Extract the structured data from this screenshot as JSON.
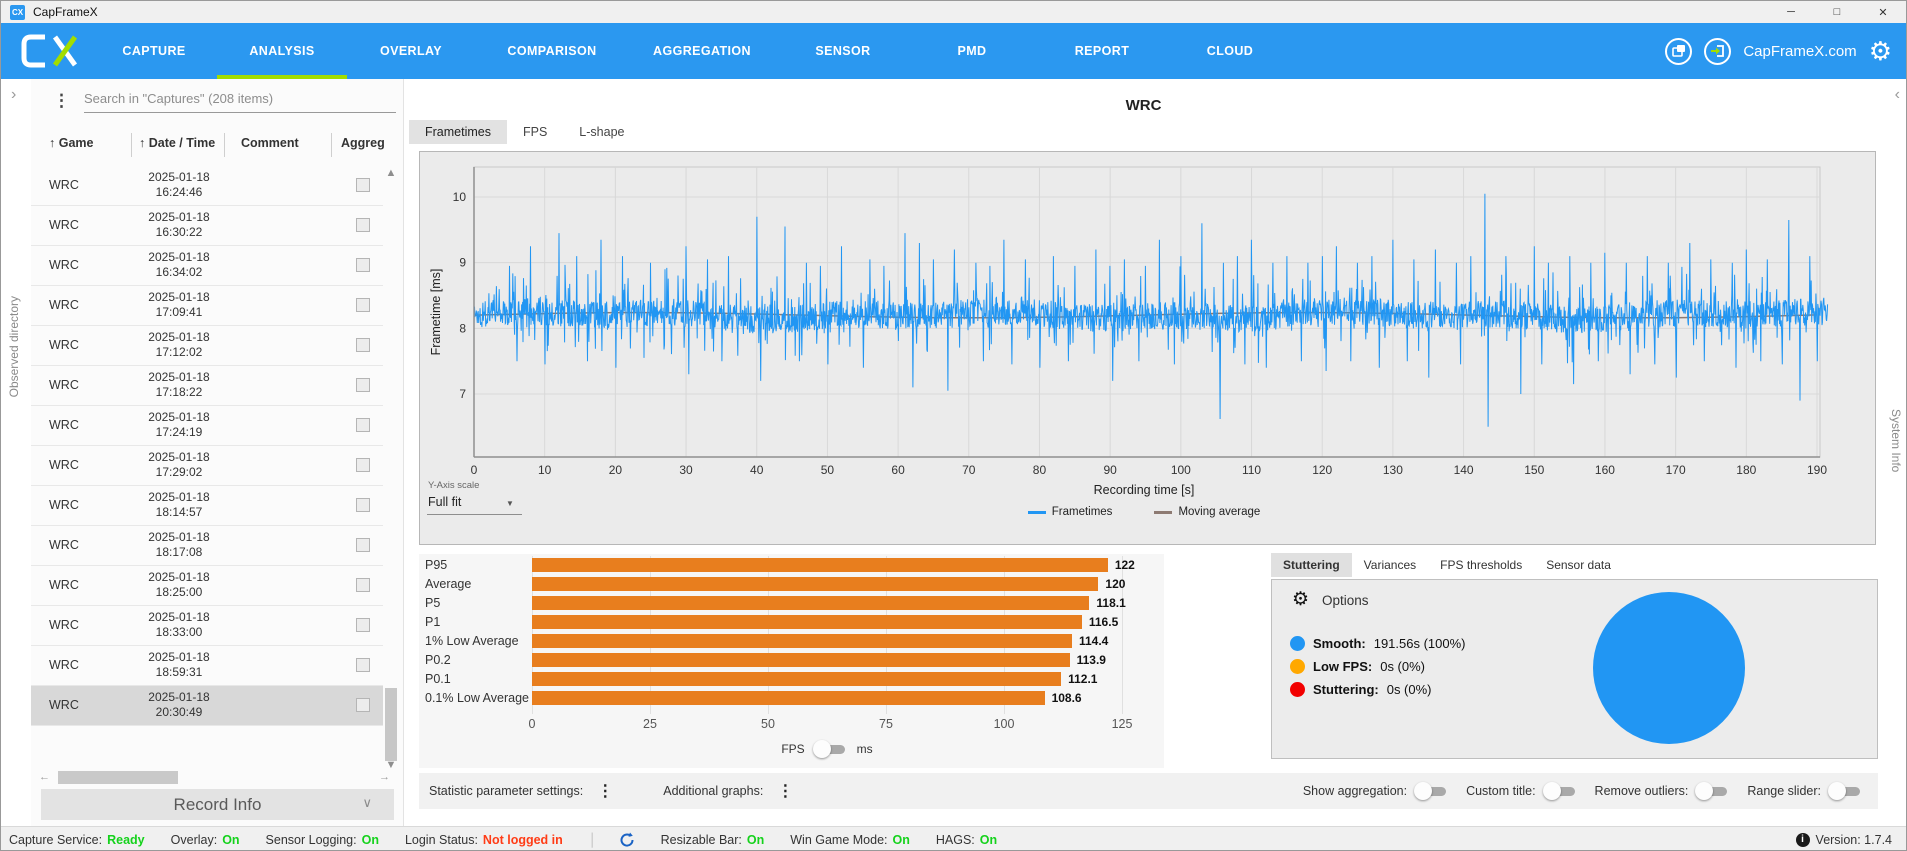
{
  "window": {
    "title": "CapFrameX"
  },
  "nav": {
    "items": [
      {
        "label": "CAPTURE"
      },
      {
        "label": "ANALYSIS"
      },
      {
        "label": "OVERLAY"
      },
      {
        "label": "COMPARISON"
      },
      {
        "label": "AGGREGATION"
      },
      {
        "label": "SENSOR"
      },
      {
        "label": "PMD"
      },
      {
        "label": "REPORT"
      },
      {
        "label": "CLOUD"
      }
    ],
    "active_index": 1,
    "site_label": "CapFrameX.com",
    "accent_underline": "#a2dd00"
  },
  "left_strip": {
    "label": "Observed directory"
  },
  "right_strip": {
    "label": "System Info"
  },
  "sidebar": {
    "search_placeholder": "Search in \"Captures\" (208 items)",
    "columns": [
      "Game",
      "Date / Time",
      "Comment",
      "Aggreg"
    ],
    "rows": [
      {
        "game": "WRC",
        "date": "2025-01-18",
        "time": "16:24:46"
      },
      {
        "game": "WRC",
        "date": "2025-01-18",
        "time": "16:30:22"
      },
      {
        "game": "WRC",
        "date": "2025-01-18",
        "time": "16:34:02"
      },
      {
        "game": "WRC",
        "date": "2025-01-18",
        "time": "17:09:41"
      },
      {
        "game": "WRC",
        "date": "2025-01-18",
        "time": "17:12:02"
      },
      {
        "game": "WRC",
        "date": "2025-01-18",
        "time": "17:18:22"
      },
      {
        "game": "WRC",
        "date": "2025-01-18",
        "time": "17:24:19"
      },
      {
        "game": "WRC",
        "date": "2025-01-18",
        "time": "17:29:02"
      },
      {
        "game": "WRC",
        "date": "2025-01-18",
        "time": "18:14:57"
      },
      {
        "game": "WRC",
        "date": "2025-01-18",
        "time": "18:17:08"
      },
      {
        "game": "WRC",
        "date": "2025-01-18",
        "time": "18:25:00"
      },
      {
        "game": "WRC",
        "date": "2025-01-18",
        "time": "18:33:00"
      },
      {
        "game": "WRC",
        "date": "2025-01-18",
        "time": "18:59:31"
      },
      {
        "game": "WRC",
        "date": "2025-01-18",
        "time": "20:30:49"
      }
    ],
    "selected_row_index": 13,
    "record_info_label": "Record Info"
  },
  "main": {
    "title": "WRC",
    "tabs": [
      "Frametimes",
      "FPS",
      "L-shape"
    ],
    "active_tab": 0,
    "yaxis_scale_label": "Y-Axis scale",
    "yaxis_scale_value": "Full fit",
    "xlabel": "Recording time [s]",
    "ylabel": "Frametime [ms]",
    "legend": [
      {
        "label": "Frametimes",
        "color": "#2196f3"
      },
      {
        "label": "Moving average",
        "color": "#8d7a72"
      }
    ]
  },
  "settings_row": {
    "left_items": [
      {
        "label": "Statistic parameter settings:"
      },
      {
        "label": "Additional graphs:"
      }
    ],
    "toggles": [
      {
        "label": "Show aggregation:",
        "on": false
      },
      {
        "label": "Custom title:",
        "on": false
      },
      {
        "label": "Remove outliers:",
        "on": false
      },
      {
        "label": "Range slider:",
        "on": false
      }
    ]
  },
  "right_panel": {
    "tabs": [
      "Stuttering",
      "Variances",
      "FPS thresholds",
      "Sensor data"
    ],
    "active_tab": 0,
    "options_label": "Options",
    "legend": [
      {
        "label": "Smooth:",
        "value": "191.56s (100%)",
        "color": "#2196f3"
      },
      {
        "label": "Low FPS:",
        "value": "0s (0%)",
        "color": "#ffa800"
      },
      {
        "label": "Stuttering:",
        "value": "0s (0%)",
        "color": "#f20000"
      }
    ]
  },
  "statusbar": {
    "items": [
      {
        "label": "Capture Service:",
        "value": "Ready",
        "color": "#15d21c"
      },
      {
        "label": "Overlay:",
        "value": "On",
        "color": "#15d21c"
      },
      {
        "label": "Sensor Logging:",
        "value": "On",
        "color": "#15d21c"
      },
      {
        "label": "Login Status:",
        "value": "Not logged in",
        "color": "#ff3c16"
      },
      {
        "separator": true
      },
      {
        "icon": "rebar-status-icon"
      },
      {
        "label": "Resizable Bar:",
        "value": "On",
        "color": "#15d21c"
      },
      {
        "label": "Win Game Mode:",
        "value": "On",
        "color": "#15d21c"
      },
      {
        "label": "HAGS:",
        "value": "On",
        "color": "#15d21c"
      }
    ],
    "version": "Version: 1.7.4"
  },
  "chart_data": [
    {
      "type": "line",
      "title": "WRC",
      "xlabel": "Recording time [s]",
      "ylabel": "Frametime [ms]",
      "x_ticks": [
        0,
        10,
        20,
        30,
        40,
        50,
        60,
        70,
        80,
        90,
        100,
        110,
        120,
        130,
        140,
        150,
        160,
        170,
        180,
        190
      ],
      "y_ticks": [
        7,
        8,
        9,
        10
      ],
      "x_range": [
        0,
        191.56
      ],
      "y_range": [
        6.04,
        10.46
      ],
      "legend": [
        "Frametimes",
        "Moving average"
      ],
      "series_color": "#2196f3",
      "moving_avg_color": "#8d7a72",
      "baseline_ms": 8.2,
      "noise_band_ms": 0.42,
      "points_count": 2900,
      "spikes_up": [
        [
          5,
          8.95
        ],
        [
          8,
          9.25
        ],
        [
          12,
          9.45
        ],
        [
          14.5,
          9.1
        ],
        [
          18,
          9.35
        ],
        [
          21,
          9.1
        ],
        [
          25,
          9.0
        ],
        [
          27,
          8.9
        ],
        [
          30,
          9.25
        ],
        [
          33,
          9.05
        ],
        [
          36,
          9.1
        ],
        [
          40,
          9.7
        ],
        [
          44,
          9.55
        ],
        [
          47,
          9.0
        ],
        [
          49,
          8.95
        ],
        [
          52,
          9.25
        ],
        [
          56,
          9.05
        ],
        [
          58,
          8.95
        ],
        [
          61,
          9.45
        ],
        [
          63,
          9.3
        ],
        [
          65,
          9.05
        ],
        [
          68,
          9.2
        ],
        [
          71,
          9.0
        ],
        [
          73,
          8.95
        ],
        [
          75,
          9.35
        ],
        [
          78,
          9.05
        ],
        [
          82,
          9.1
        ],
        [
          85,
          8.95
        ],
        [
          88,
          9.2
        ],
        [
          90,
          8.95
        ],
        [
          92,
          9.05
        ],
        [
          95,
          8.95
        ],
        [
          97,
          9.35
        ],
        [
          100,
          9.1
        ],
        [
          103,
          9.6
        ],
        [
          106,
          9.0
        ],
        [
          108,
          9.1
        ],
        [
          110,
          9.35
        ],
        [
          113,
          9.0
        ],
        [
          115,
          9.1
        ],
        [
          118,
          9.0
        ],
        [
          120,
          9.1
        ],
        [
          122,
          9.25
        ],
        [
          125,
          9.0
        ],
        [
          127,
          9.1
        ],
        [
          130,
          9.35
        ],
        [
          133,
          9.05
        ],
        [
          136,
          9.2
        ],
        [
          139,
          9.0
        ],
        [
          141,
          9.1
        ],
        [
          143,
          10.05
        ],
        [
          146,
          9.1
        ],
        [
          150,
          9.25
        ],
        [
          152,
          9.0
        ],
        [
          155,
          9.1
        ],
        [
          158,
          9.0
        ],
        [
          160,
          9.15
        ],
        [
          163,
          9.0
        ],
        [
          166,
          9.1
        ],
        [
          169,
          9.0
        ],
        [
          172,
          9.3
        ],
        [
          175,
          9.05
        ],
        [
          178,
          9.0
        ],
        [
          180,
          9.2
        ],
        [
          183,
          9.05
        ],
        [
          186,
          9.65
        ],
        [
          189,
          9.1
        ]
      ],
      "spikes_down": [
        [
          6,
          7.5
        ],
        [
          10,
          7.45
        ],
        [
          16,
          7.5
        ],
        [
          20,
          7.4
        ],
        [
          24,
          7.55
        ],
        [
          30.3,
          7.3
        ],
        [
          35,
          7.5
        ],
        [
          40.5,
          7.2
        ],
        [
          46,
          7.5
        ],
        [
          50,
          7.45
        ],
        [
          55,
          7.4
        ],
        [
          62,
          7.1
        ],
        [
          67,
          7.05
        ],
        [
          72,
          7.5
        ],
        [
          76,
          7.45
        ],
        [
          80,
          7.4
        ],
        [
          84,
          7.5
        ],
        [
          90.3,
          7.2
        ],
        [
          94,
          7.5
        ],
        [
          99,
          7.45
        ],
        [
          105.5,
          6.62
        ],
        [
          109,
          7.45
        ],
        [
          112,
          7.4
        ],
        [
          117,
          7.5
        ],
        [
          120.5,
          7.35
        ],
        [
          124,
          7.5
        ],
        [
          128,
          7.4
        ],
        [
          132,
          7.5
        ],
        [
          135,
          7.25
        ],
        [
          139.5,
          7.45
        ],
        [
          143.4,
          6.5
        ],
        [
          148,
          7.0
        ],
        [
          151,
          7.45
        ],
        [
          155.5,
          7.15
        ],
        [
          159,
          7.5
        ],
        [
          163.5,
          7.3
        ],
        [
          167,
          7.45
        ],
        [
          170,
          7.25
        ],
        [
          174,
          7.5
        ],
        [
          178.5,
          7.4
        ],
        [
          182,
          7.5
        ],
        [
          185,
          7.45
        ],
        [
          187.5,
          6.9
        ],
        [
          190,
          7.5
        ]
      ]
    },
    {
      "type": "bar",
      "orientation": "horizontal",
      "categories": [
        "P95",
        "Average",
        "P5",
        "P1",
        "1% Low Average",
        "P0.2",
        "P0.1",
        "0.1% Low Average"
      ],
      "values": [
        122,
        120,
        118.1,
        116.5,
        114.4,
        113.9,
        112.1,
        108.6
      ],
      "x_ticks": [
        0,
        25,
        50,
        75,
        100,
        125
      ],
      "xlim": [
        0,
        125
      ],
      "bar_color": "#e87e1e",
      "unit_left": "FPS",
      "unit_right": "ms"
    },
    {
      "type": "pie",
      "labels": [
        "Smooth",
        "Low FPS",
        "Stuttering"
      ],
      "values_seconds": [
        191.56,
        0,
        0
      ],
      "values_percent": [
        100,
        0,
        0
      ],
      "colors": [
        "#2196f3",
        "#ffa800",
        "#f20000"
      ]
    }
  ]
}
